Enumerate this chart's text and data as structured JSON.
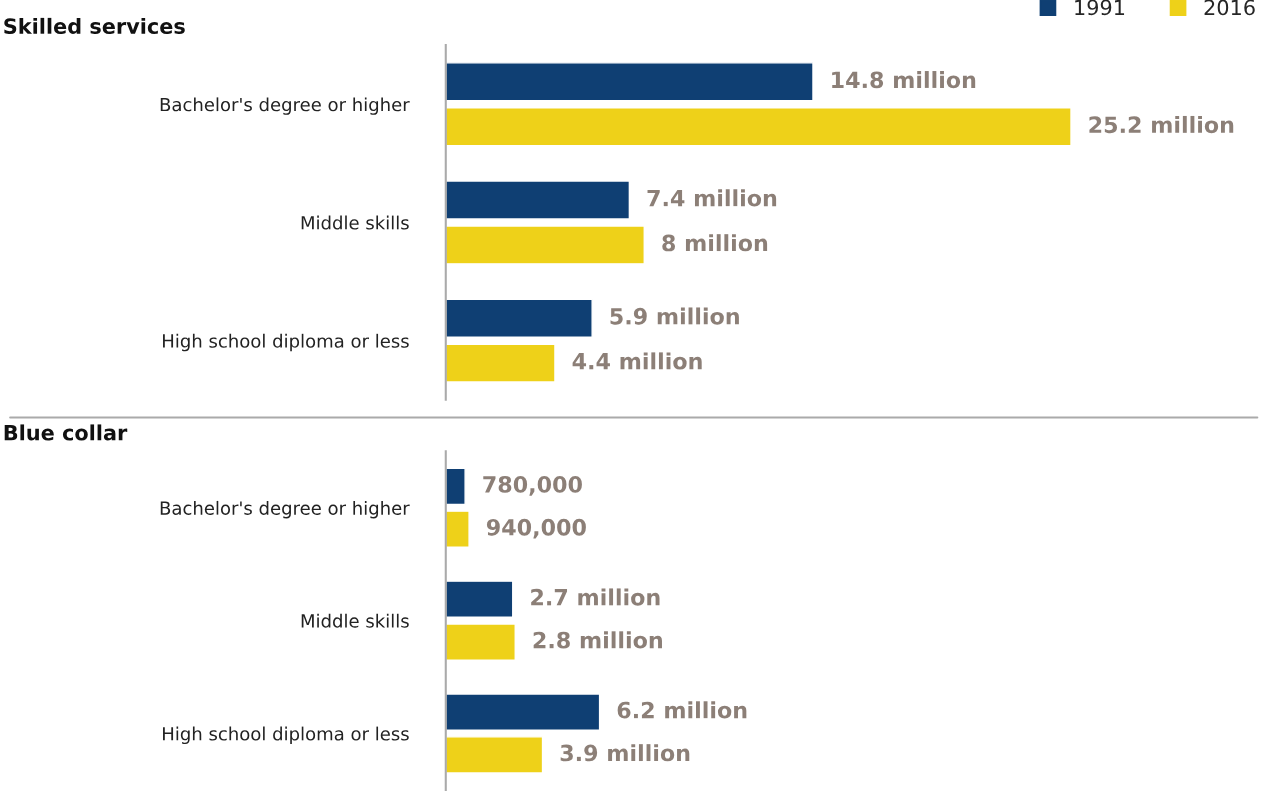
{
  "chart_data": [
    {
      "type": "bar",
      "orientation": "horizontal",
      "title": "Skilled services",
      "categories": [
        "Bachelor's degree or higher",
        "Middle skills",
        "High school diploma or less"
      ],
      "legend": "top right",
      "series": [
        {
          "name": "1991",
          "color": "#0f3f73",
          "values": [
            14800000,
            7400000,
            5900000
          ],
          "value_labels": [
            "14.8 million",
            "7.4 million",
            "5.9 million"
          ]
        },
        {
          "name": "2016",
          "color": "#eed119",
          "values": [
            25200000,
            8000000,
            4400000
          ],
          "value_labels": [
            "25.2 million",
            "8 million",
            "4.4 million"
          ]
        }
      ]
    },
    {
      "type": "bar",
      "orientation": "horizontal",
      "title": "Blue collar",
      "categories": [
        "Bachelor's degree or higher",
        "Middle skills",
        "High school diploma or less"
      ],
      "series": [
        {
          "name": "1991",
          "color": "#0f3f73",
          "values": [
            780000,
            2700000,
            6200000
          ],
          "value_labels": [
            "780,000",
            "2.7 million",
            "6.2 million"
          ]
        },
        {
          "name": "2016",
          "color": "#eed119",
          "values": [
            940000,
            2800000,
            3900000
          ],
          "value_labels": [
            "940,000",
            "2.8 million",
            "3.9 million"
          ]
        }
      ]
    }
  ]
}
